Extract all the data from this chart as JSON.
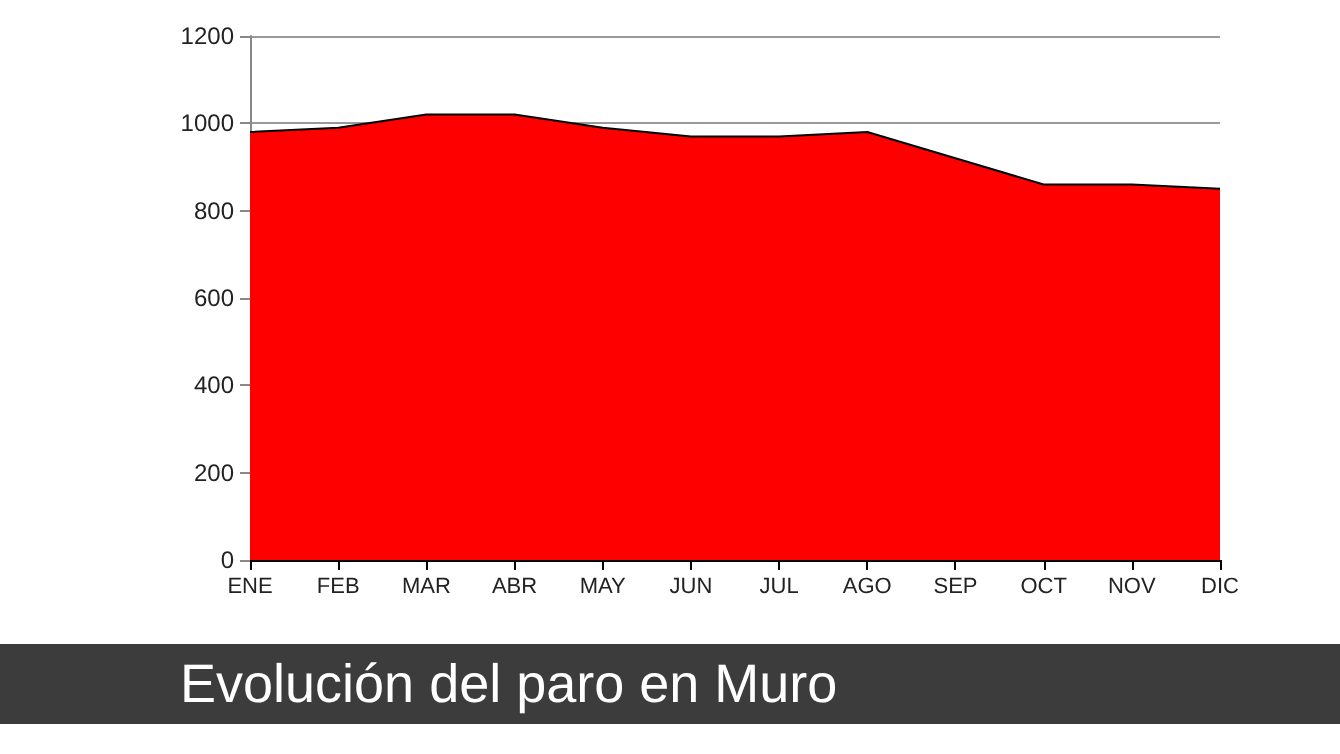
{
  "chart_data": {
    "type": "area",
    "title": "Evolución del paro en Muro",
    "categories": [
      "ENE",
      "FEB",
      "MAR",
      "ABR",
      "MAY",
      "JUN",
      "JUL",
      "AGO",
      "SEP",
      "OCT",
      "NOV",
      "DIC"
    ],
    "values": [
      980,
      990,
      1020,
      1020,
      990,
      970,
      970,
      980,
      920,
      860,
      860,
      850
    ],
    "color": "#ff0000",
    "ylim": [
      0,
      1200
    ],
    "yticks": [
      0,
      200,
      400,
      600,
      800,
      1000,
      1200
    ],
    "grid": "y"
  }
}
